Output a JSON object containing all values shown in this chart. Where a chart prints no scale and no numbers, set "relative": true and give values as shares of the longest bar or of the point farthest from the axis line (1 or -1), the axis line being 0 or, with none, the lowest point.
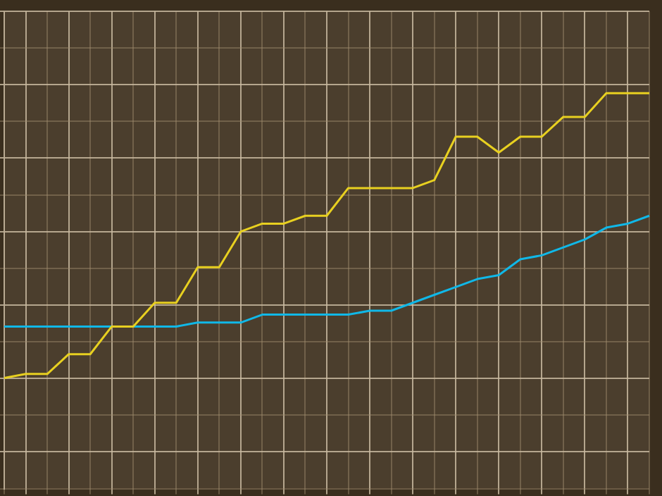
{
  "chart_data": {
    "type": "line",
    "relative": true,
    "categories": [
      null,
      null,
      null,
      null,
      null,
      null,
      null,
      null,
      null,
      null,
      null,
      null,
      null,
      null,
      null,
      null,
      null,
      null,
      null,
      null,
      null,
      null,
      null,
      null,
      null,
      null,
      null,
      null,
      null,
      null,
      null
    ],
    "series": [
      {
        "color": "#e8d020",
        "values": [
          0.28,
          0.29,
          0.29,
          0.34,
          0.34,
          0.41,
          0.41,
          0.47,
          0.47,
          0.56,
          0.56,
          0.65,
          0.67,
          0.67,
          0.69,
          0.69,
          0.76,
          0.76,
          0.76,
          0.76,
          0.78,
          0.89,
          0.89,
          0.85,
          0.89,
          0.89,
          0.94,
          0.94,
          1,
          1,
          1
        ]
      },
      {
        "color": "#10b8e8",
        "values": [
          0.41,
          0.41,
          0.41,
          0.41,
          0.41,
          0.41,
          0.41,
          0.41,
          0.41,
          0.42,
          0.42,
          0.42,
          0.44,
          0.44,
          0.44,
          0.44,
          0.44,
          0.45,
          0.45,
          0.47,
          0.49,
          0.51,
          0.53,
          0.54,
          0.58,
          0.59,
          0.61,
          0.63,
          0.66,
          0.67,
          0.69
        ]
      }
    ],
    "grid": true,
    "legend": false,
    "marker": "none",
    "line_style": "solid"
  }
}
